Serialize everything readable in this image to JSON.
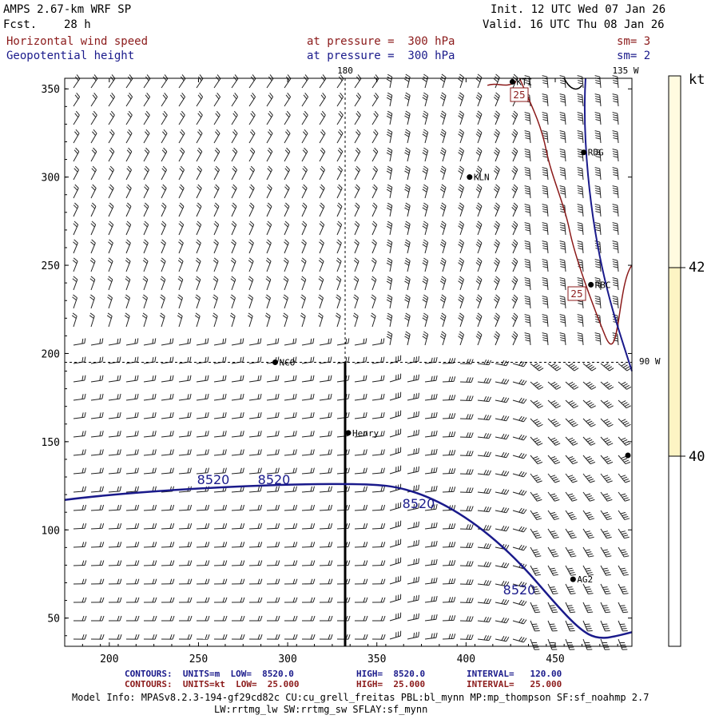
{
  "header": {
    "model": "AMPS 2.67-km WRF SP",
    "fcst_label": "Fcst.",
    "fcst_value": "28 h",
    "init": "Init. 12 UTC Wed 07 Jan 26",
    "valid": "Valid. 16 UTC Thu 08 Jan 26",
    "field1": "Horizontal wind speed",
    "field2": "Geopotential height",
    "pressure1": "at pressure =  300 hPa",
    "pressure2": "at pressure =  300 hPa",
    "sm1": "sm= 3",
    "sm2": "sm= 2"
  },
  "map": {
    "x_ticks": [
      "200",
      "250",
      "300",
      "350",
      "400",
      "450"
    ],
    "y_ticks": [
      "50",
      "100",
      "150",
      "200",
      "250",
      "300",
      "350"
    ],
    "meridian_180": "180",
    "meridian_135w": "135 W",
    "parallel_90w": "90 W",
    "stations": [
      {
        "name": "NCO",
        "x": 293,
        "y": 195
      },
      {
        "name": "KLN",
        "x": 402,
        "y": 300
      },
      {
        "name": "RDG",
        "x": 466,
        "y": 314
      },
      {
        "name": "RBC",
        "x": 470,
        "y": 239
      },
      {
        "name": "KTI",
        "x": 426,
        "y": 354
      },
      {
        "name": "Henry",
        "x": 334,
        "y": 155
      },
      {
        "name": "AG2",
        "x": 460,
        "y": 72
      }
    ],
    "height_contour_label": "8520",
    "wind_contour_label": "25"
  },
  "colorbar": {
    "unit": "kt",
    "labels": [
      "42",
      "40"
    ]
  },
  "footer": {
    "contours1_a": "CONTOURS:  UNITS=m  LOW=  8520.0",
    "contours1_b": "HIGH=  8520.0",
    "contours1_c": "INTERVAL=   120.00",
    "contours2_a": "CONTOURS:  UNITS=kt  LOW=  25.000",
    "contours2_b": "HIGH=  25.000",
    "contours2_c": "INTERVAL=   25.000",
    "model_info": "Model Info: MPASv8.2.3-194-gf29cd82c CU:cu_grell_freitas PBL:bl_mynn MP:mp_thompson SF:sf_noahmp 2.7",
    "model_info2": "LW:rrtmg_lw SW:rrtmg_sw SFLAY:sf_mynn"
  },
  "colors": {
    "height_contour": "#1a1a8b",
    "wind_contour": "#8b1a1a",
    "shade_light": "#fffbe0",
    "shade_mid": "#fdf4c4"
  }
}
